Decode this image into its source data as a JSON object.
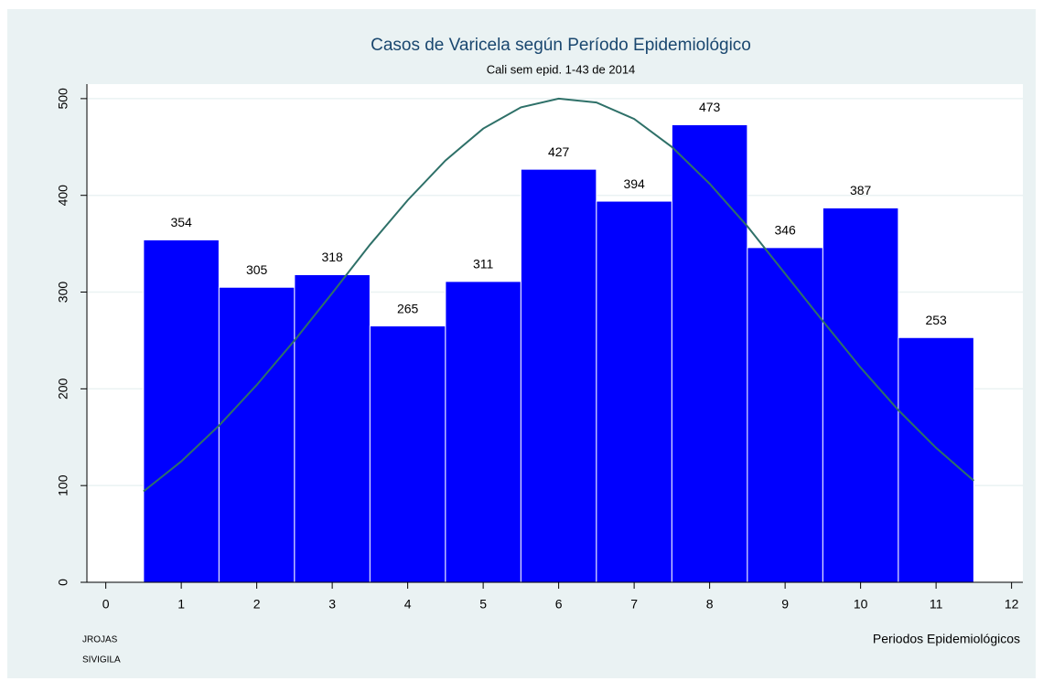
{
  "chart_data": {
    "type": "histogram",
    "title": "Casos de Varicela según Período Epidemiológico",
    "subtitle": "Cali sem epid. 1-43 de 2014",
    "xlabel": "Periodos Epidemiológicos",
    "notes": [
      "JROJAS",
      "SIVIGILA"
    ],
    "bins": [
      0.5,
      1.5,
      2.5,
      3.5,
      4.5,
      5.5,
      6.5,
      7.5,
      8.5,
      9.5,
      10.5,
      11.5
    ],
    "values": [
      354,
      305,
      318,
      265,
      311,
      427,
      394,
      473,
      346,
      387,
      253
    ],
    "color": "#0000ff",
    "curve": {
      "type": "line",
      "color": "#2e7068",
      "x": [
        0.5,
        1,
        1.5,
        2,
        2.5,
        3,
        3.5,
        4,
        4.5,
        5,
        5.5,
        6,
        6.5,
        7,
        7.5,
        8,
        8.5,
        9,
        9.5,
        10,
        10.5,
        11,
        11.5
      ],
      "values": [
        94,
        125,
        162,
        204,
        250,
        299,
        349,
        395,
        436,
        469,
        491,
        500,
        496,
        479,
        450,
        412,
        368,
        319,
        270,
        222,
        178,
        139,
        105
      ]
    },
    "xlim": [
      -0.25,
      12.15
    ],
    "xticks": [
      0,
      1,
      2,
      3,
      4,
      5,
      6,
      7,
      8,
      9,
      10,
      11,
      12
    ],
    "ylim": [
      0,
      515
    ],
    "yticks": [
      0,
      100,
      200,
      300,
      400,
      500
    ],
    "grid": true
  }
}
